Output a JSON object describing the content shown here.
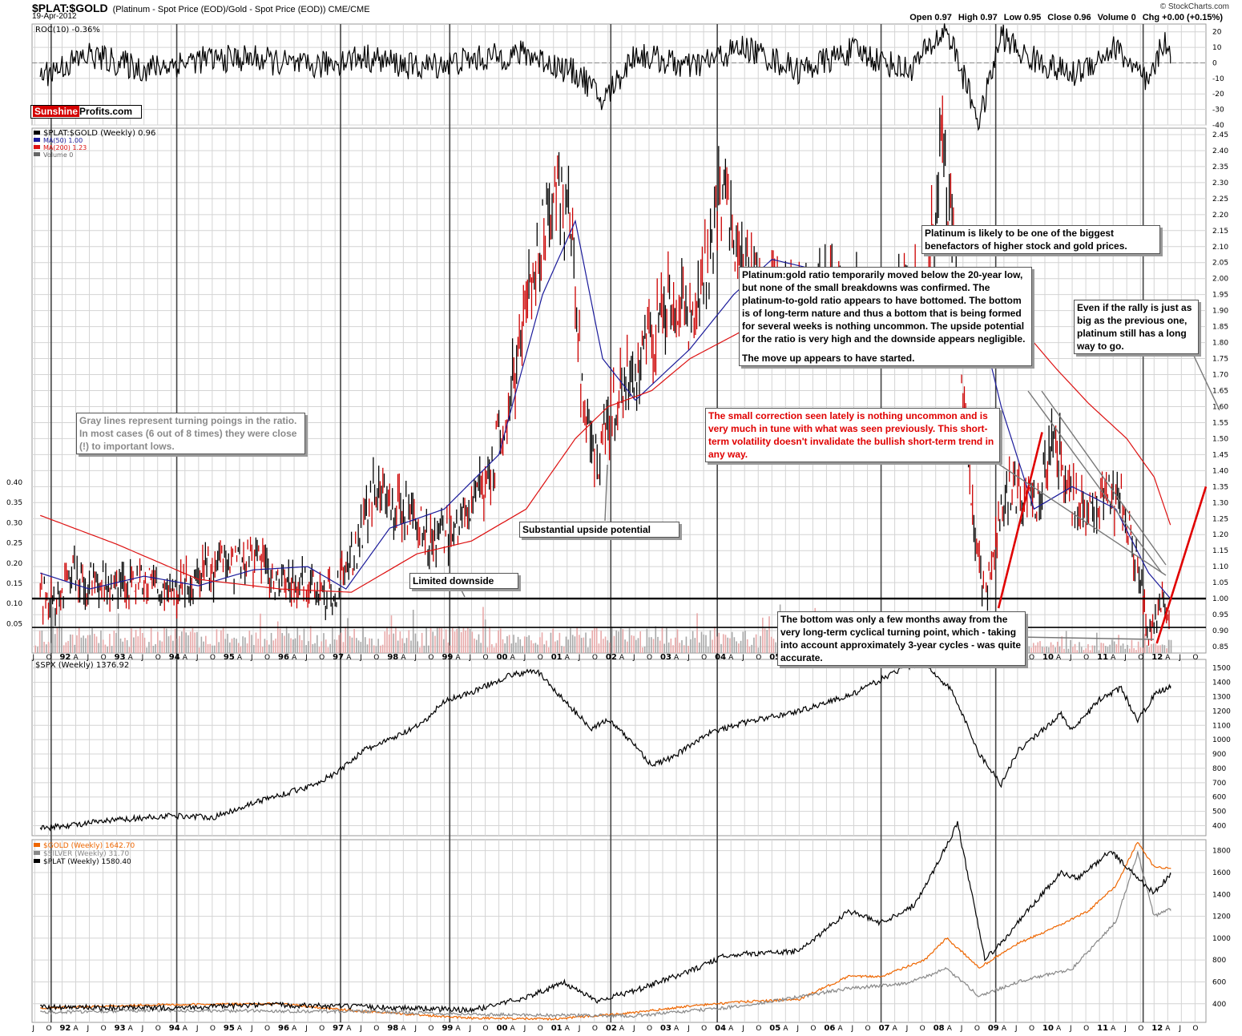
{
  "header": {
    "title": "$PLAT:$GOLD",
    "subtitle": "(Platinum  - Spot Price (EOD)/Gold - Spot Price (EOD)) CME/CME",
    "date": "19-Apr-2012",
    "brand": "© StockCharts.com",
    "ohlc": {
      "open": "Open 0.97",
      "high": "High 0.97",
      "low": "Low 0.95",
      "close": "Close 0.96",
      "volume": "Volume 0",
      "chg": "Chg +0.00 (+0.15%)"
    }
  },
  "watermark": {
    "part1": "Sunshine",
    "part2": "Profits.com"
  },
  "colors": {
    "ratio_up": "#000000",
    "ratio_down": "#cc0000",
    "ma50": "#1a1a9a",
    "ma200": "#dd1111",
    "gold": "#ee6600",
    "silver": "#888888",
    "plat": "#000000",
    "grid": "#d4d4d4",
    "turning": "#444444"
  },
  "annotations": {
    "platinum_benefactor": "Platinum is likely to be one of the biggest benefactors of higher stock and gold prices.",
    "ratio_bottom_a": "Platinum:gold ratio temporarily moved below the 20-year low, but none of the small breakdowns was confirmed. The platinum-to-gold ratio appears to have bottomed. The bottom is of long-term nature and thus a bottom that is being formed for several weeks is nothing uncommon. The upside potential for the ratio is very high and the downside appears negligible.",
    "ratio_bottom_b": "The move up appears to have started.",
    "rally": "Even if the rally is just as big as the previous one, platinum still has a long way to go.",
    "gray_lines": "Gray lines represent turning poings in the ratio. In most cases (6 out of 8 times) they were close (!) to important lows.",
    "correction": "The small correction seen lately is nothing uncommon and is very much in tune with what was seen previously. This short-term volatility doesn't invalidate the bullish short-term trend in any way.",
    "upside": "Substantial upside potential",
    "downside": "Limited downside",
    "cycle": "The bottom was only a few months away from the very long-term cyclical turning point, which - taking into account approximately 3-year cycles - was quite accurate."
  },
  "chart_data": [
    {
      "type": "line",
      "panel": "roc",
      "title": "ROC(10) -0.36%",
      "ylim": [
        -40,
        25
      ],
      "y_ticks": [
        "20",
        "10",
        "0",
        "-10",
        "-20",
        "-30",
        "-40"
      ],
      "x": [
        1991.6,
        1992.5,
        1993.5,
        1994.5,
        1995.5,
        1996.5,
        1997.5,
        1998.5,
        1999.5,
        2000.5,
        2001.5,
        2001.9,
        2002.5,
        2003.5,
        2004.5,
        2005.5,
        2006.5,
        2007.5,
        2008.2,
        2008.8,
        2009.2,
        2009.6,
        2010.5,
        2011.3,
        2011.9,
        2012.2,
        2012.3
      ],
      "values": [
        -8,
        5,
        -4,
        2,
        3,
        -3,
        4,
        -3,
        2,
        6,
        -8,
        -25,
        6,
        -3,
        10,
        -5,
        8,
        -5,
        22,
        -38,
        18,
        5,
        -8,
        10,
        -15,
        17,
        -0.36
      ]
    },
    {
      "type": "line",
      "panel": "ratio",
      "title": "$PLAT:$GOLD (Weekly) 0.96",
      "legend": [
        "$PLAT:$GOLD (Weekly) 0.96",
        "MA(50) 1.00",
        "MA(200) 1.23",
        "Volume 0"
      ],
      "ylim": [
        0.83,
        2.47
      ],
      "y_ticks": [
        "2.45",
        "2.40",
        "2.35",
        "2.30",
        "2.25",
        "2.20",
        "2.15",
        "2.10",
        "2.05",
        "2.00",
        "1.95",
        "1.90",
        "1.85",
        "1.80",
        "1.75",
        "1.70",
        "1.65",
        "1.60",
        "1.55",
        "1.50",
        "1.45",
        "1.40",
        "1.35",
        "1.30",
        "1.25",
        "1.20",
        "1.15",
        "1.10",
        "1.05",
        "1.00",
        "0.95",
        "0.90",
        "0.85"
      ],
      "volume_ticks": [
        "0.40",
        "0.35",
        "0.30",
        "0.25",
        "0.20",
        "0.15",
        "0.10",
        "0.05"
      ],
      "horizontal_lines": [
        1.0,
        0.91
      ],
      "series": [
        {
          "name": "$PLAT:$GOLD (Weekly)",
          "x": [
            1991.6,
            1991.9,
            1992.2,
            1992.6,
            1993.0,
            1993.5,
            1994.0,
            1994.5,
            1995.0,
            1995.5,
            1995.9,
            1996.4,
            1997.0,
            1997.4,
            1997.7,
            1998.0,
            1998.5,
            1998.8,
            1999.1,
            1999.5,
            1999.8,
            2000.2,
            2000.6,
            2001.0,
            2001.3,
            2001.5,
            2001.8,
            2002.0,
            2002.4,
            2002.8,
            2003.1,
            2003.5,
            2003.9,
            2004.1,
            2004.4,
            2004.8,
            2005.2,
            2005.6,
            2006.0,
            2006.5,
            2007.0,
            2007.5,
            2007.8,
            2008.1,
            2008.3,
            2008.6,
            2008.9,
            2009.1,
            2009.4,
            2009.8,
            2010.2,
            2010.5,
            2010.8,
            2011.1,
            2011.4,
            2011.7,
            2011.9,
            2012.0,
            2012.2,
            2012.3
          ],
          "values": [
            1.02,
            0.98,
            1.08,
            1.05,
            1.02,
            1.06,
            1.01,
            1.08,
            1.1,
            1.12,
            1.06,
            1.04,
            1.02,
            1.15,
            1.35,
            1.3,
            1.24,
            1.18,
            1.22,
            1.3,
            1.38,
            1.62,
            1.98,
            2.32,
            2.15,
            1.7,
            1.4,
            1.55,
            1.72,
            1.8,
            1.95,
            1.85,
            2.1,
            2.3,
            2.05,
            1.95,
            1.98,
            1.9,
            2.0,
            1.92,
            1.88,
            1.95,
            1.9,
            2.4,
            2.2,
            1.4,
            0.97,
            1.2,
            1.35,
            1.28,
            1.5,
            1.3,
            1.28,
            1.35,
            1.3,
            1.1,
            0.88,
            0.95,
            1.0,
            0.96
          ]
        },
        {
          "name": "MA(50)",
          "x": [
            1991.6,
            1992.5,
            1993.5,
            1994.5,
            1995.5,
            1996.5,
            1997.2,
            1998.0,
            1999.0,
            2000.0,
            2000.8,
            2001.4,
            2001.9,
            2002.5,
            2003.5,
            2004.3,
            2005.0,
            2006.0,
            2007.0,
            2007.5,
            2008.2,
            2008.7,
            2009.2,
            2009.8,
            2010.5,
            2011.3,
            2011.9,
            2012.3
          ],
          "values": [
            1.08,
            1.03,
            1.07,
            1.04,
            1.09,
            1.1,
            1.03,
            1.22,
            1.28,
            1.45,
            1.95,
            2.18,
            1.75,
            1.62,
            1.78,
            1.95,
            2.06,
            2.02,
            1.95,
            1.9,
            1.88,
            1.95,
            1.6,
            1.28,
            1.35,
            1.28,
            1.08,
            1.0
          ]
        },
        {
          "name": "MA(200)",
          "x": [
            1991.6,
            1993.0,
            1994.5,
            1996.0,
            1997.3,
            1998.5,
            1999.5,
            2000.5,
            2001.4,
            2002.0,
            2002.8,
            2003.5,
            2004.5,
            2005.5,
            2006.5,
            2007.5,
            2008.2,
            2008.8,
            2009.5,
            2010.2,
            2010.8,
            2011.5,
            2012.0,
            2012.3
          ],
          "values": [
            1.26,
            1.17,
            1.06,
            1.03,
            1.02,
            1.14,
            1.18,
            1.28,
            1.5,
            1.6,
            1.65,
            1.75,
            1.84,
            1.87,
            1.92,
            1.96,
            1.96,
            1.92,
            1.86,
            1.72,
            1.61,
            1.5,
            1.38,
            1.23
          ]
        }
      ]
    },
    {
      "type": "line",
      "panel": "spx",
      "title": "$SPX (Weekly) 1376.92",
      "ylim": [
        330,
        1560
      ],
      "y_ticks": [
        "1500",
        "1400",
        "1300",
        "1200",
        "1100",
        "1000",
        "900",
        "800",
        "700",
        "600",
        "500",
        "400"
      ],
      "x": [
        1991.6,
        1993.0,
        1994.0,
        1994.8,
        1995.5,
        1996.5,
        1997.0,
        1997.5,
        1998.0,
        1998.6,
        1999.0,
        1999.5,
        2000.2,
        2000.7,
        2001.3,
        2001.7,
        2002.0,
        2002.5,
        2002.8,
        2003.2,
        2003.8,
        2004.5,
        2005.5,
        2006.5,
        2007.4,
        2007.8,
        2008.3,
        2008.8,
        2009.2,
        2009.5,
        2010.3,
        2010.5,
        2011.0,
        2011.4,
        2011.7,
        2012.0,
        2012.3
      ],
      "values": [
        380,
        440,
        470,
        460,
        560,
        670,
        760,
        920,
        1000,
        1110,
        1270,
        1330,
        1450,
        1480,
        1230,
        1080,
        1140,
        960,
        820,
        880,
        1040,
        1120,
        1200,
        1320,
        1500,
        1530,
        1340,
        900,
        690,
        920,
        1180,
        1060,
        1280,
        1360,
        1130,
        1310,
        1376.92
      ]
    },
    {
      "type": "line",
      "panel": "metals",
      "ylim": [
        230,
        1900
      ],
      "y_ticks": [
        "1800",
        "1600",
        "1400",
        "1200",
        "1000",
        "800",
        "600",
        "400"
      ],
      "legend": [
        "$GOLD (Weekly) 1642.70",
        "$SILVER (Weekly) 31.70",
        "$PLAT (Weekly) 1580.40"
      ],
      "series": [
        {
          "name": "$GOLD (Weekly)",
          "x": [
            1991.6,
            1993.5,
            1996.0,
            1997.5,
            1999.5,
            2001.0,
            2002.5,
            2003.5,
            2004.5,
            2005.5,
            2006.4,
            2007.0,
            2007.8,
            2008.2,
            2008.8,
            2009.5,
            2010.2,
            2010.8,
            2011.3,
            2011.7,
            2012.0,
            2012.3
          ],
          "values": [
            360,
            390,
            400,
            330,
            270,
            260,
            320,
            380,
            420,
            440,
            650,
            650,
            800,
            1000,
            730,
            950,
            1100,
            1250,
            1480,
            1880,
            1650,
            1642.7
          ]
        },
        {
          "name": "$SILVER (Weekly)",
          "x": [
            1991.6,
            1993.5,
            1997.5,
            2000.0,
            2002.5,
            2004.5,
            2006.4,
            2007.5,
            2008.2,
            2008.8,
            2009.5,
            2010.5,
            2011.3,
            2011.7,
            2012.0,
            2012.3
          ],
          "values": [
            320,
            340,
            330,
            300,
            290,
            380,
            540,
            590,
            720,
            470,
            600,
            720,
            1150,
            1780,
            1200,
            1268
          ]
        },
        {
          "name": "$PLAT (Weekly)",
          "x": [
            1991.6,
            1993.5,
            1996.0,
            1998.5,
            1999.5,
            2000.5,
            2001.2,
            2001.8,
            2002.5,
            2003.5,
            2004.2,
            2005.5,
            2006.4,
            2007.0,
            2007.6,
            2008.0,
            2008.4,
            2008.9,
            2009.2,
            2009.6,
            2010.3,
            2010.6,
            2011.2,
            2011.8,
            2012.0,
            2012.3
          ],
          "values": [
            370,
            360,
            390,
            360,
            340,
            460,
            590,
            430,
            520,
            700,
            850,
            880,
            1250,
            1140,
            1300,
            1650,
            2050,
            810,
            950,
            1200,
            1600,
            1540,
            1800,
            1500,
            1420,
            1580.4
          ]
        }
      ]
    }
  ],
  "x_axis": {
    "labels": [
      "J",
      "O",
      "92",
      "A",
      "J",
      "O",
      "93",
      "A",
      "J",
      "O",
      "94",
      "A",
      "J",
      "O",
      "95",
      "A",
      "J",
      "O",
      "96",
      "A",
      "J",
      "O",
      "97",
      "A",
      "J",
      "O",
      "98",
      "A",
      "J",
      "O",
      "99",
      "A",
      "J",
      "O",
      "00",
      "A",
      "J",
      "O",
      "01",
      "A",
      "J",
      "O",
      "02",
      "A",
      "J",
      "O",
      "03",
      "A",
      "J",
      "O",
      "04",
      "A",
      "J",
      "O",
      "05",
      "A",
      "J",
      "O",
      "06",
      "A",
      "J",
      "O",
      "07",
      "A",
      "J",
      "O",
      "08",
      "A",
      "J",
      "O",
      "09",
      "A",
      "J",
      "O",
      "10",
      "A",
      "J",
      "O",
      "11",
      "A",
      "J",
      "O",
      "12",
      "A",
      "J",
      "O"
    ],
    "turning_points": [
      1991.8,
      1994.1,
      1997.1,
      1999.1,
      2002.05,
      2004.0,
      2007.0,
      2009.1,
      2011.8
    ]
  }
}
